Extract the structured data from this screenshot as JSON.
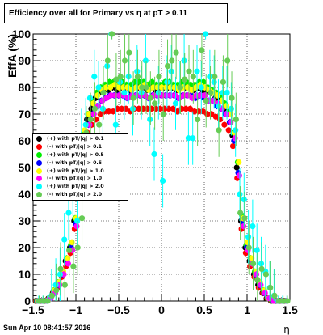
{
  "title": "Efficiency over all for Primary vs   η at pT > 0.11",
  "footer": "Sun Apr 10 08:41:57 2016",
  "chart_data": {
    "type": "scatter",
    "xlabel": "η",
    "ylabel": "EffA (%)",
    "xlim": [
      -1.5,
      1.5
    ],
    "ylim": [
      0,
      100
    ],
    "x_ticks": [
      "−1.5",
      "−1",
      "−0.5",
      "0",
      "0.5",
      "1",
      "1.5"
    ],
    "y_ticks": [
      "0",
      "10",
      "20",
      "30",
      "40",
      "50",
      "60",
      "70",
      "80",
      "90",
      "100"
    ],
    "grid": true,
    "legend_position": "left-middle",
    "x": [
      -1.45,
      -1.4,
      -1.35,
      -1.3,
      -1.25,
      -1.2,
      -1.15,
      -1.1,
      -1.05,
      -1.0,
      -0.95,
      -0.9,
      -0.85,
      -0.8,
      -0.75,
      -0.7,
      -0.65,
      -0.6,
      -0.55,
      -0.5,
      -0.45,
      -0.4,
      -0.35,
      -0.3,
      -0.25,
      -0.2,
      -0.15,
      -0.1,
      -0.05,
      0.0,
      0.05,
      0.1,
      0.15,
      0.2,
      0.25,
      0.3,
      0.35,
      0.4,
      0.45,
      0.5,
      0.55,
      0.6,
      0.65,
      0.7,
      0.75,
      0.8,
      0.85,
      0.9,
      0.95,
      1.0,
      1.05,
      1.1,
      1.15,
      1.2,
      1.25,
      1.3,
      1.35,
      1.4,
      1.45
    ],
    "series": [
      {
        "name": "(+) with pT/|q| > 0.1",
        "color": "#000000",
        "values": [
          0,
          0,
          0,
          1,
          3,
          6,
          10,
          15,
          20,
          30,
          50,
          62,
          68,
          72,
          76,
          78,
          79,
          79,
          80,
          79,
          80,
          80,
          79,
          80,
          80,
          80,
          79,
          80,
          79,
          80,
          80,
          80,
          80,
          79,
          80,
          80,
          80,
          79,
          80,
          79,
          78,
          78,
          76,
          75,
          72,
          70,
          62,
          50,
          30,
          20,
          15,
          10,
          6,
          3,
          1,
          0,
          0,
          0,
          0
        ]
      },
      {
        "name": "(-) with pT/|q| > 0.1",
        "color": "#ff0000",
        "values": [
          0,
          0,
          0,
          1,
          3,
          5,
          9,
          13,
          18,
          27,
          45,
          58,
          63,
          66,
          68,
          70,
          71,
          71,
          71,
          72,
          72,
          72,
          71,
          72,
          72,
          72,
          72,
          72,
          72,
          72,
          72,
          72,
          72,
          71,
          72,
          72,
          72,
          71,
          71,
          71,
          70,
          70,
          69,
          68,
          66,
          64,
          58,
          46,
          27,
          18,
          13,
          9,
          5,
          3,
          1,
          0,
          0,
          0,
          0
        ]
      },
      {
        "name": "(+) with pT/|q| > 0.5",
        "color": "#00ee00",
        "values": [
          0,
          0,
          0,
          1,
          4,
          7,
          11,
          16,
          21,
          31,
          51,
          63,
          70,
          75,
          78,
          80,
          81,
          82,
          82,
          82,
          82,
          81,
          81,
          82,
          82,
          82,
          81,
          82,
          81,
          81,
          82,
          82,
          81,
          81,
          82,
          82,
          81,
          81,
          82,
          82,
          80,
          79,
          78,
          77,
          74,
          71,
          63,
          52,
          32,
          21,
          16,
          11,
          7,
          4,
          1,
          0,
          0,
          0,
          0
        ]
      },
      {
        "name": "(-) with pT/|q| > 0.5",
        "color": "#0000ff",
        "values": [
          0,
          0,
          0,
          1,
          3,
          6,
          10,
          15,
          20,
          29,
          48,
          60,
          66,
          70,
          73,
          75,
          76,
          77,
          77,
          77,
          77,
          76,
          77,
          77,
          77,
          77,
          76,
          77,
          77,
          77,
          77,
          77,
          77,
          76,
          77,
          77,
          77,
          76,
          77,
          76,
          75,
          75,
          73,
          72,
          70,
          67,
          60,
          48,
          29,
          20,
          15,
          10,
          6,
          3,
          1,
          0,
          0,
          0,
          0
        ]
      },
      {
        "name": "(+) with pT/|q| > 1.0",
        "color": "#ffff00",
        "values": [
          0,
          0,
          0,
          1,
          4,
          7,
          11,
          16,
          22,
          31,
          52,
          64,
          70,
          74,
          77,
          79,
          80,
          80,
          81,
          80,
          80,
          80,
          79,
          80,
          80,
          81,
          79,
          80,
          80,
          80,
          80,
          80,
          80,
          79,
          80,
          80,
          79,
          80,
          81,
          80,
          79,
          78,
          77,
          75,
          73,
          70,
          63,
          52,
          31,
          22,
          16,
          11,
          7,
          4,
          1,
          0,
          0,
          0,
          0
        ]
      },
      {
        "name": "(-) with pT/|q| > 1.0",
        "color": "#ff00ff",
        "values": [
          0,
          0,
          0,
          1,
          3,
          6,
          10,
          14,
          19,
          28,
          47,
          60,
          66,
          70,
          73,
          75,
          76,
          77,
          77,
          77,
          77,
          76,
          77,
          77,
          77,
          77,
          76,
          77,
          77,
          77,
          77,
          77,
          77,
          76,
          77,
          77,
          76,
          77,
          77,
          77,
          75,
          75,
          74,
          72,
          70,
          67,
          61,
          47,
          28,
          19,
          14,
          10,
          6,
          3,
          1,
          0,
          0,
          0,
          0
        ]
      },
      {
        "name": "(+) with pT/|q| > 2.0",
        "color": "#00ffff",
        "values": [
          0,
          0,
          0,
          2,
          6,
          10,
          23,
          33,
          42,
          30,
          62,
          66,
          76,
          84,
          80,
          72,
          88,
          100,
          66,
          82,
          78,
          84,
          72,
          86,
          78,
          90,
          68,
          55,
          78,
          45,
          82,
          86,
          74,
          80,
          90,
          61,
          61,
          86,
          80,
          100,
          84,
          82,
          73,
          78,
          78,
          72,
          64,
          40,
          38,
          24,
          28,
          19,
          14,
          11,
          5,
          2,
          0,
          0,
          0
        ]
      },
      {
        "name": "(-) with pT/|q| > 2.0",
        "color": "#66cc55",
        "values": [
          0,
          0,
          0,
          2,
          4,
          12,
          6,
          19,
          13,
          20,
          31,
          63,
          68,
          72,
          66,
          78,
          90,
          100,
          83,
          84,
          90,
          93,
          76,
          84,
          80,
          80,
          76,
          74,
          84,
          70,
          88,
          90,
          93,
          80,
          83,
          86,
          84,
          68,
          94,
          75,
          78,
          84,
          64,
          82,
          90,
          76,
          68,
          33,
          31,
          20,
          14,
          8,
          12,
          10,
          5,
          2,
          0,
          0,
          0
        ]
      }
    ]
  }
}
